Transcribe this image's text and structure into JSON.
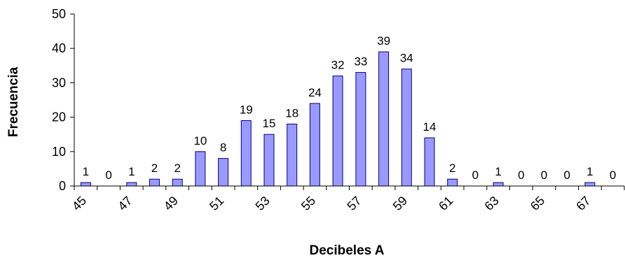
{
  "chart_data": {
    "type": "bar",
    "title": "",
    "xlabel": "Decibeles A",
    "ylabel": "Frecuencia",
    "categories": [
      45,
      46,
      47,
      48,
      49,
      50,
      51,
      52,
      53,
      54,
      55,
      56,
      57,
      58,
      59,
      60,
      61,
      62,
      63,
      64,
      65,
      66,
      67,
      68
    ],
    "values": [
      1,
      0,
      1,
      2,
      2,
      10,
      8,
      19,
      15,
      18,
      24,
      32,
      33,
      39,
      34,
      14,
      2,
      0,
      1,
      0,
      0,
      0,
      1,
      0
    ],
    "x_tick_labels": [
      "45",
      "47",
      "49",
      "51",
      "53",
      "55",
      "57",
      "59",
      "61",
      "63",
      "65",
      "67"
    ],
    "y_ticks": [
      0,
      10,
      20,
      30,
      40,
      50
    ],
    "ylim": [
      0,
      50
    ],
    "grid": false,
    "legend": "none",
    "bar_color": "#9999ff",
    "bar_edge_color": "#000080"
  }
}
